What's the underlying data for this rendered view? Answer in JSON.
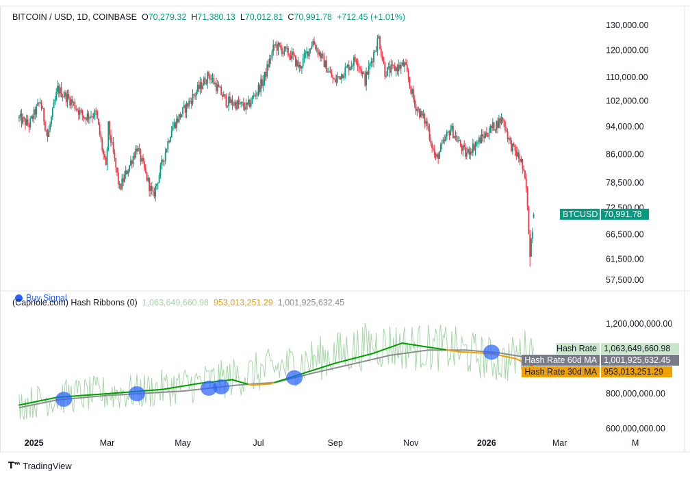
{
  "header": {
    "symbol": "BITCOIN / USD, 1D, COINBASE",
    "o_label": "O",
    "o_value": "70,279.32",
    "h_label": "H",
    "h_value": "71,380.13",
    "l_label": "L",
    "l_value": "70,012.81",
    "c_label": "C",
    "c_value": "70,991.78",
    "change": "+712.45 (+1.01%)"
  },
  "indicator": {
    "title": "(Capriole.com) Hash Ribbons (0)",
    "hash_rate_value": "1,063,649,660.98",
    "ma30_value": "953,013,251.29",
    "ma60_value": "1,001,925,632.45",
    "buy_signal_label": "Buy Signal"
  },
  "watermark": {
    "label": "TradingView"
  },
  "colors": {
    "up": "#089981",
    "down": "#f23645",
    "hash_rate": "#a5d6a7",
    "ma_green": "#00a000",
    "ma30_orange": "#f0a000",
    "ma60_gray": "#8c8c8c",
    "buy_signal": "#2962ff"
  },
  "chart_data": [
    {
      "type": "candlestick",
      "title": "BITCOIN / USD, 1D, COINBASE",
      "y_scale": "log",
      "ylim": [
        55000,
        132000
      ],
      "y_ticks": [
        130000,
        120000,
        110000,
        102000,
        94000,
        86000,
        78500,
        72500,
        66500,
        61500,
        57500
      ],
      "y_tick_labels": [
        "130,000.00",
        "120,000.00",
        "110,000.00",
        "102,000.00",
        "94,000.00",
        "86,000.00",
        "78,500.00",
        "72,500.00",
        "66,500.00",
        "61,500.00",
        "57,500.00"
      ],
      "price_label": {
        "name": "BTCUSD",
        "value": 70991.78,
        "text": "70,991.78"
      },
      "x_labels": [
        "2025",
        "Mar",
        "May",
        "Jul",
        "Sep",
        "Nov",
        "2026",
        "Mar",
        "M"
      ],
      "approx_close_path": [
        {
          "date": "2024-12-20",
          "price": 96500
        },
        {
          "date": "2024-12-28",
          "price": 94500
        },
        {
          "date": "2025-01-06",
          "price": 102000
        },
        {
          "date": "2025-01-12",
          "price": 91000
        },
        {
          "date": "2025-01-20",
          "price": 106000
        },
        {
          "date": "2025-01-31",
          "price": 102000
        },
        {
          "date": "2025-02-10",
          "price": 97000
        },
        {
          "date": "2025-02-20",
          "price": 98000
        },
        {
          "date": "2025-02-28",
          "price": 82000
        },
        {
          "date": "2025-03-02",
          "price": 94000
        },
        {
          "date": "2025-03-11",
          "price": 77000
        },
        {
          "date": "2025-03-25",
          "price": 88000
        },
        {
          "date": "2025-04-07",
          "price": 75000
        },
        {
          "date": "2025-04-22",
          "price": 93500
        },
        {
          "date": "2025-05-10",
          "price": 104000
        },
        {
          "date": "2025-05-22",
          "price": 111000
        },
        {
          "date": "2025-06-05",
          "price": 102000
        },
        {
          "date": "2025-06-22",
          "price": 100000
        },
        {
          "date": "2025-07-05",
          "price": 109000
        },
        {
          "date": "2025-07-14",
          "price": 122000
        },
        {
          "date": "2025-07-28",
          "price": 118000
        },
        {
          "date": "2025-08-03",
          "price": 113500
        },
        {
          "date": "2025-08-14",
          "price": 123500
        },
        {
          "date": "2025-08-31",
          "price": 108500
        },
        {
          "date": "2025-09-18",
          "price": 117000
        },
        {
          "date": "2025-09-25",
          "price": 109000
        },
        {
          "date": "2025-10-06",
          "price": 125000
        },
        {
          "date": "2025-10-11",
          "price": 112000
        },
        {
          "date": "2025-10-27",
          "price": 114500
        },
        {
          "date": "2025-11-04",
          "price": 101000
        },
        {
          "date": "2025-11-14",
          "price": 94500
        },
        {
          "date": "2025-11-21",
          "price": 84500
        },
        {
          "date": "2025-12-03",
          "price": 93500
        },
        {
          "date": "2025-12-15",
          "price": 86000
        },
        {
          "date": "2026-01-05",
          "price": 93500
        },
        {
          "date": "2026-01-14",
          "price": 96500
        },
        {
          "date": "2026-01-20",
          "price": 89000
        },
        {
          "date": "2026-01-29",
          "price": 84000
        },
        {
          "date": "2026-02-02",
          "price": 77000
        },
        {
          "date": "2026-02-05",
          "price": 63000
        },
        {
          "date": "2026-02-08",
          "price": 70991.78
        }
      ]
    },
    {
      "type": "line",
      "title": "(Capriole.com) Hash Ribbons (0)",
      "ylim": [
        560000000,
        1300000000
      ],
      "y_ticks": [
        1200000000,
        800000000,
        600000000
      ],
      "y_tick_labels": [
        "1,200,000,000.00",
        "800,000,000.00",
        "600,000,000.00"
      ],
      "series": [
        {
          "name": "Hash Rate",
          "last_value": 1063649660.98,
          "last_text": "1,063,649,660.98",
          "approx_path": [
            {
              "date": "2024-12-20",
              "value": 740000000
            },
            {
              "date": "2025-02-01",
              "value": 790000000
            },
            {
              "date": "2025-04-01",
              "value": 815000000
            },
            {
              "date": "2025-06-01",
              "value": 880000000
            },
            {
              "date": "2025-08-01",
              "value": 970000000
            },
            {
              "date": "2025-10-01",
              "value": 1080000000
            },
            {
              "date": "2025-12-01",
              "value": 1060000000
            },
            {
              "date": "2026-01-15",
              "value": 980000000
            },
            {
              "date": "2026-02-08",
              "value": 1063649660.98
            }
          ]
        },
        {
          "name": "Hash Rate 60d MA",
          "last_value": 1001925632.45,
          "last_text": "1,001,925,632.45",
          "approx_path": [
            {
              "date": "2024-12-20",
              "value": 720000000
            },
            {
              "date": "2025-01-20",
              "value": 765000000
            },
            {
              "date": "2025-03-01",
              "value": 790000000
            },
            {
              "date": "2025-05-01",
              "value": 815000000
            },
            {
              "date": "2025-06-15",
              "value": 850000000
            },
            {
              "date": "2025-07-15",
              "value": 865000000
            },
            {
              "date": "2025-08-15",
              "value": 920000000
            },
            {
              "date": "2025-09-15",
              "value": 970000000
            },
            {
              "date": "2025-10-15",
              "value": 1020000000
            },
            {
              "date": "2025-11-15",
              "value": 1050000000
            },
            {
              "date": "2025-12-15",
              "value": 1050000000
            },
            {
              "date": "2026-01-10",
              "value": 1035000000
            },
            {
              "date": "2026-02-08",
              "value": 1001925632.45
            }
          ]
        },
        {
          "name": "Hash Rate 30d MA",
          "last_value": 953013251.29,
          "last_text": "953,013,251.29",
          "color_rule": "green when above 60d MA, orange when below",
          "approx_path": [
            {
              "date": "2024-12-20",
              "value": 735000000
            },
            {
              "date": "2025-01-20",
              "value": 780000000
            },
            {
              "date": "2025-03-01",
              "value": 800000000
            },
            {
              "date": "2025-04-15",
              "value": 825000000
            },
            {
              "date": "2025-05-15",
              "value": 860000000
            },
            {
              "date": "2025-06-10",
              "value": 880000000
            },
            {
              "date": "2025-06-25",
              "value": 850000000
            },
            {
              "date": "2025-07-10",
              "value": 855000000
            },
            {
              "date": "2025-08-01",
              "value": 905000000
            },
            {
              "date": "2025-09-01",
              "value": 975000000
            },
            {
              "date": "2025-10-01",
              "value": 1030000000
            },
            {
              "date": "2025-10-25",
              "value": 1090000000
            },
            {
              "date": "2025-11-12",
              "value": 1070000000
            },
            {
              "date": "2025-12-10",
              "value": 1040000000
            },
            {
              "date": "2026-01-05",
              "value": 1030000000
            },
            {
              "date": "2026-01-25",
              "value": 1000000000
            },
            {
              "date": "2026-02-08",
              "value": 953013251.29
            }
          ]
        }
      ],
      "buy_signals": [
        "2025-01-25",
        "2025-03-25",
        "2025-05-22",
        "2025-06-01",
        "2025-07-30",
        "2026-01-05"
      ]
    }
  ]
}
